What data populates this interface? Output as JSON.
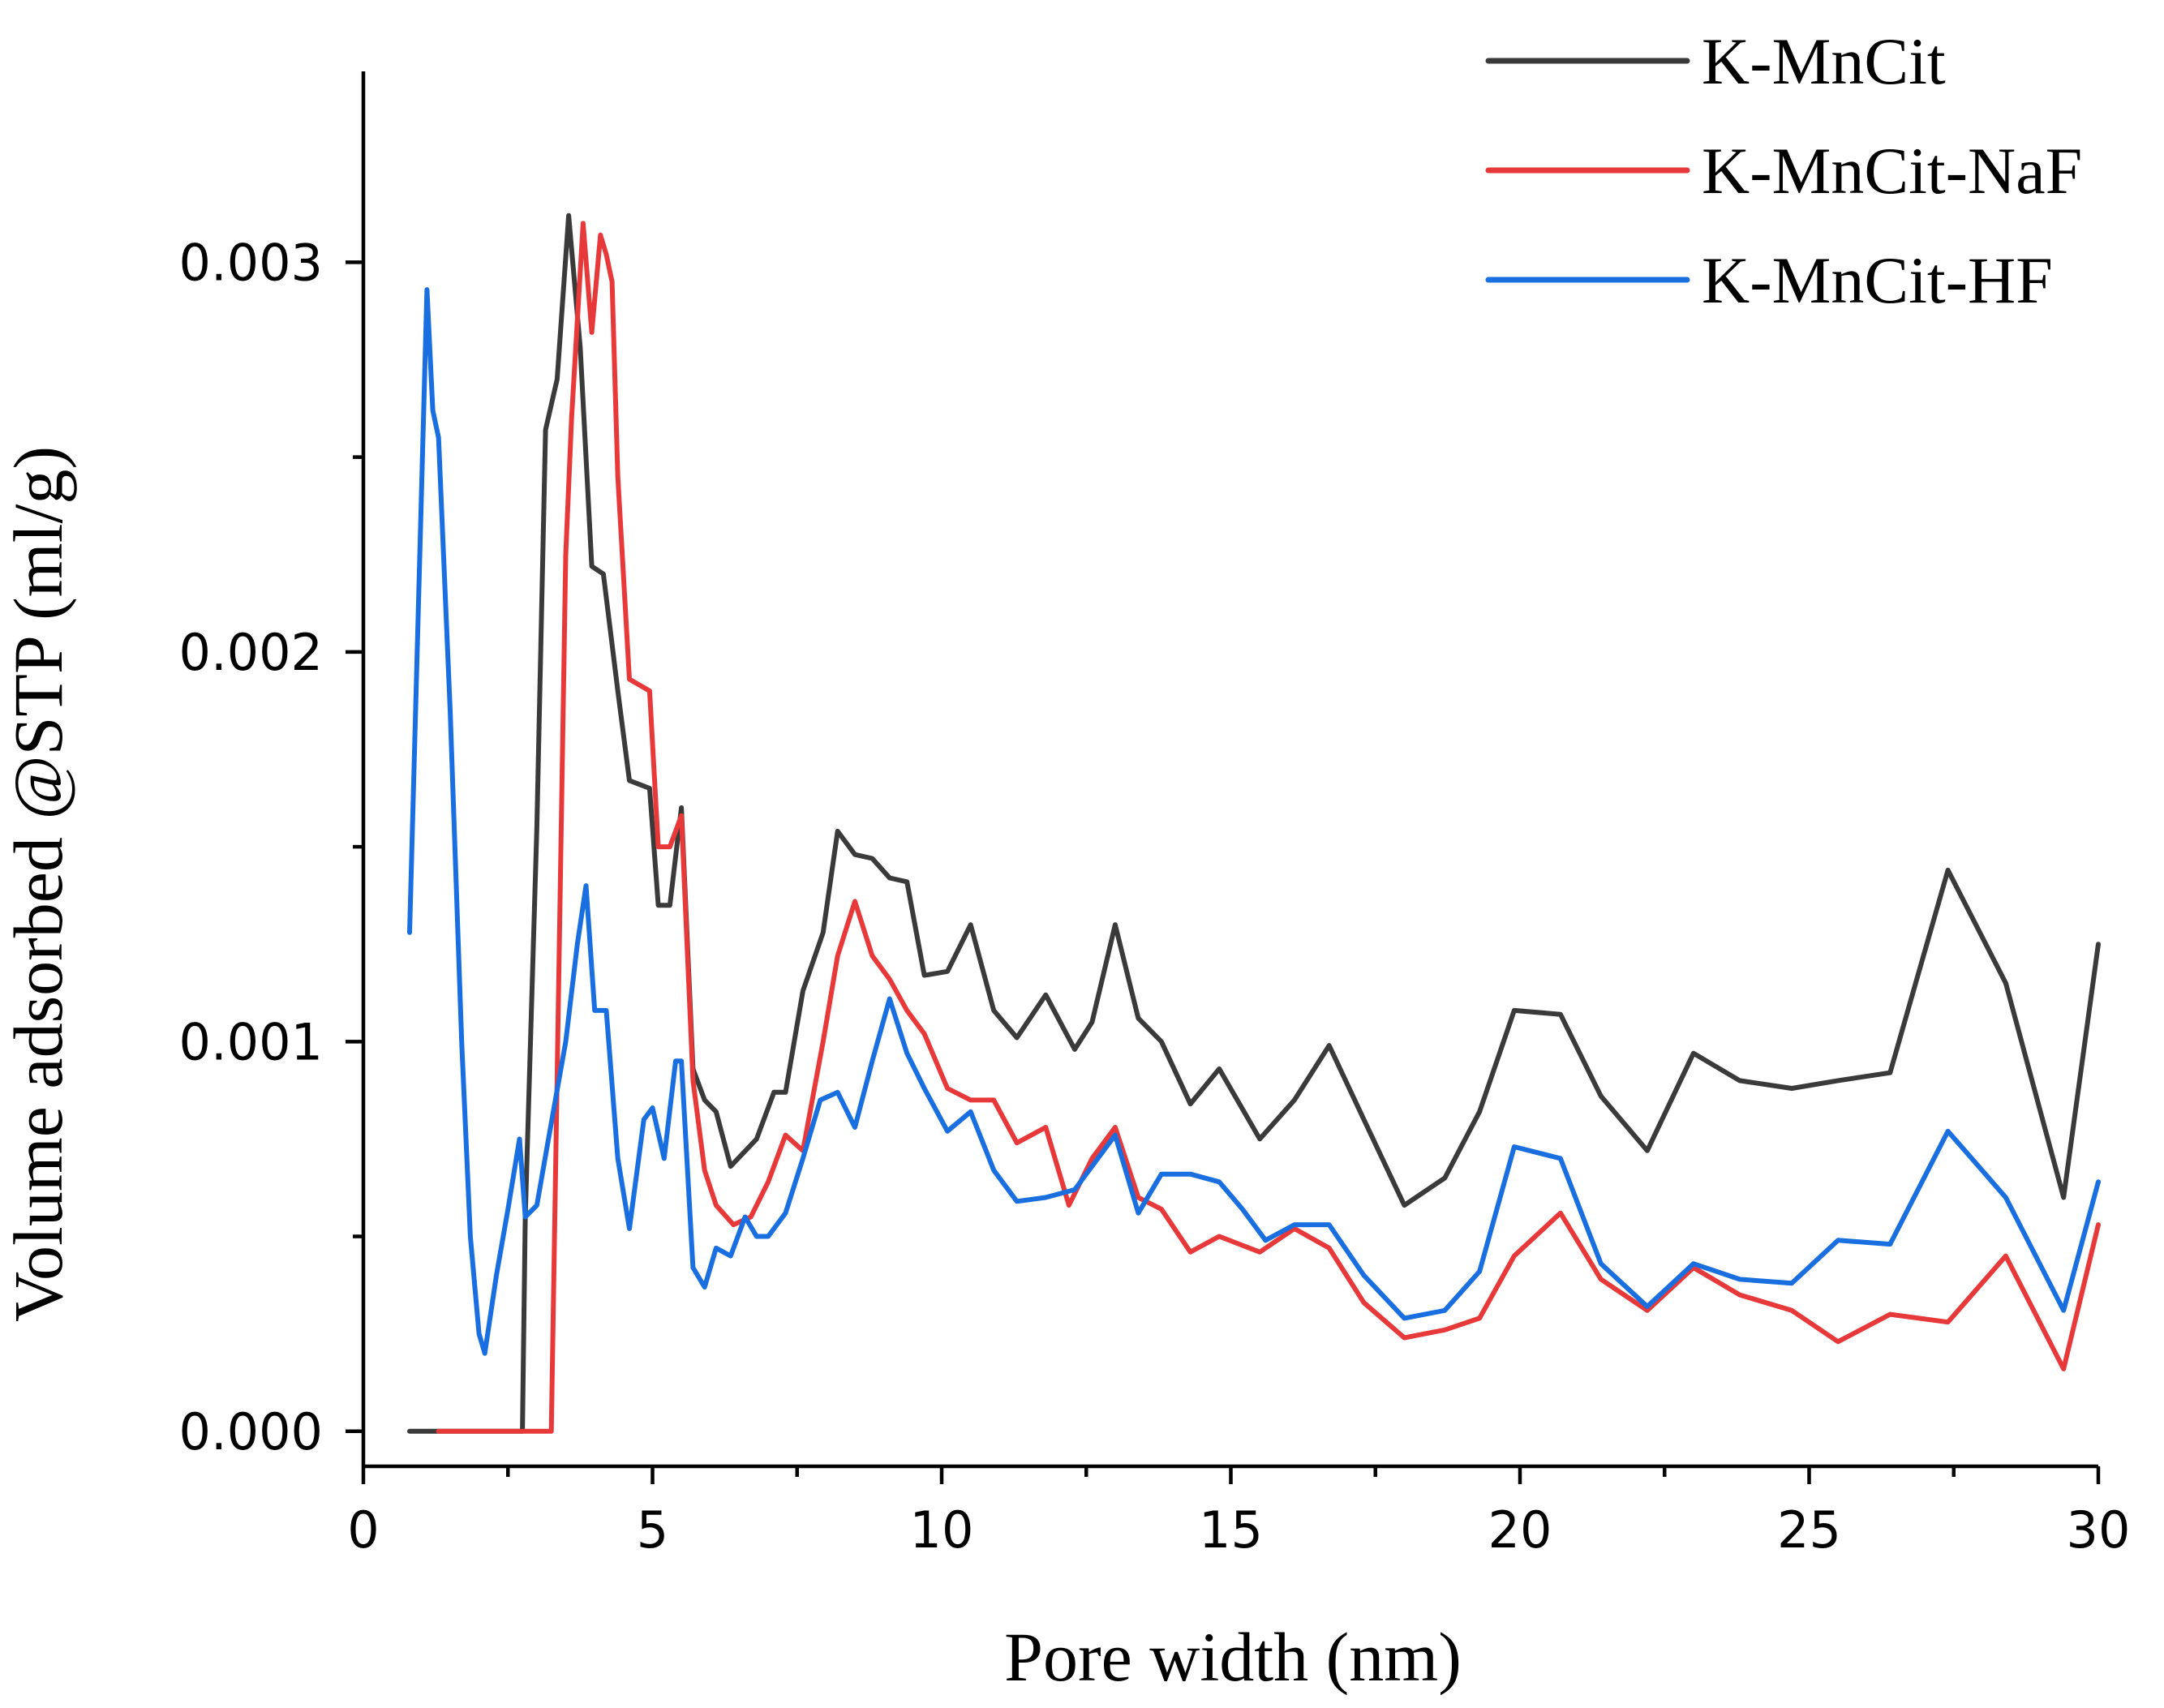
{
  "chart_data": {
    "type": "line",
    "xlabel": "Pore width (nm)",
    "ylabel": "Volume adsorbed @STP (ml/g)",
    "xlim": [
      0,
      30
    ],
    "ylim": [
      -9e-05,
      0.00349
    ],
    "x_ticks": [
      0,
      5,
      10,
      15,
      20,
      25,
      30
    ],
    "x_tick_labels": [
      "0",
      "5",
      "10",
      "15",
      "20",
      "25",
      "30"
    ],
    "y_ticks": [
      0,
      0.001,
      0.002,
      0.003
    ],
    "y_tick_labels": [
      "0.000",
      "0.001",
      "0.002",
      "0.003"
    ],
    "legend_position": "top-right",
    "grid": false,
    "series": [
      {
        "name": "K-MnCit",
        "color": "#3a3a3a",
        "x": [
          0.8,
          1.3,
          1.8,
          2.3,
          2.75,
          2.8,
          3.0,
          3.15,
          3.35,
          3.55,
          3.75,
          3.95,
          4.15,
          4.4,
          4.6,
          4.95,
          5.1,
          5.3,
          5.5,
          5.7,
          5.9,
          6.1,
          6.35,
          6.8,
          7.1,
          7.3,
          7.6,
          7.95,
          8.2,
          8.5,
          8.8,
          9.1,
          9.4,
          9.7,
          10.1,
          10.5,
          10.9,
          11.3,
          11.8,
          12.3,
          12.6,
          13.0,
          13.4,
          13.8,
          14.3,
          14.8,
          15.5,
          16.1,
          16.7,
          17.3,
          18.0,
          18.7,
          19.3,
          19.9,
          20.7,
          21.4,
          22.2,
          23.0,
          23.8,
          24.7,
          25.5,
          26.4,
          27.4,
          28.4,
          29.4,
          30.0
        ],
        "y": [
          0.0,
          0.0,
          0.0,
          0.0,
          0.0,
          0.00055,
          0.00155,
          0.00257,
          0.0027,
          0.00312,
          0.00278,
          0.00222,
          0.0022,
          0.0019,
          0.00167,
          0.00165,
          0.00135,
          0.00135,
          0.0016,
          0.00093,
          0.00085,
          0.00082,
          0.00068,
          0.00075,
          0.00087,
          0.00087,
          0.00113,
          0.00128,
          0.00154,
          0.00148,
          0.00147,
          0.00142,
          0.00141,
          0.00117,
          0.00118,
          0.0013,
          0.00108,
          0.00101,
          0.00112,
          0.00098,
          0.00105,
          0.0013,
          0.00106,
          0.001,
          0.00084,
          0.00093,
          0.00075,
          0.00085,
          0.00099,
          0.0008,
          0.00058,
          0.00065,
          0.00082,
          0.00108,
          0.00107,
          0.00086,
          0.00072,
          0.00097,
          0.0009,
          0.00088,
          0.0009,
          0.00092,
          0.00144,
          0.00115,
          0.0006,
          0.00125
        ]
      },
      {
        "name": "K-MnCit-NaF",
        "color": "#e8393a",
        "x": [
          1.3,
          1.8,
          2.3,
          2.8,
          3.25,
          3.5,
          3.6,
          3.8,
          3.95,
          4.1,
          4.2,
          4.3,
          4.4,
          4.6,
          4.95,
          5.1,
          5.3,
          5.5,
          5.7,
          5.9,
          6.1,
          6.4,
          6.7,
          7.0,
          7.3,
          7.6,
          7.95,
          8.2,
          8.5,
          8.8,
          9.1,
          9.4,
          9.7,
          10.1,
          10.5,
          10.9,
          11.3,
          11.8,
          12.2,
          12.6,
          13.0,
          13.4,
          13.8,
          14.3,
          14.8,
          15.5,
          16.1,
          16.7,
          17.3,
          18.0,
          18.7,
          19.3,
          19.9,
          20.7,
          21.4,
          22.2,
          23.0,
          23.8,
          24.7,
          25.5,
          26.4,
          27.4,
          28.4,
          29.4,
          30.0
        ],
        "y": [
          0.0,
          0.0,
          0.0,
          0.0,
          0.0,
          0.00225,
          0.0026,
          0.0031,
          0.00282,
          0.00307,
          0.00302,
          0.00295,
          0.00245,
          0.00193,
          0.0019,
          0.0015,
          0.0015,
          0.00158,
          0.0009,
          0.00067,
          0.00058,
          0.00053,
          0.00055,
          0.00064,
          0.00076,
          0.00072,
          0.001,
          0.00122,
          0.00136,
          0.00122,
          0.00116,
          0.00108,
          0.00102,
          0.00088,
          0.00085,
          0.00085,
          0.00074,
          0.00078,
          0.00058,
          0.0007,
          0.00078,
          0.0006,
          0.00057,
          0.00046,
          0.0005,
          0.00046,
          0.00052,
          0.00047,
          0.00033,
          0.00024,
          0.00026,
          0.00029,
          0.00045,
          0.00056,
          0.00039,
          0.00031,
          0.00042,
          0.00035,
          0.00031,
          0.00023,
          0.0003,
          0.00028,
          0.00045,
          0.00016,
          0.00053
        ]
      },
      {
        "name": "K-MnCit-HF",
        "color": "#1a6fe0",
        "x": [
          0.8,
          1.1,
          1.2,
          1.3,
          1.5,
          1.7,
          1.85,
          2.0,
          2.1,
          2.3,
          2.5,
          2.7,
          2.8,
          3.0,
          3.2,
          3.5,
          3.7,
          3.85,
          4.0,
          4.2,
          4.4,
          4.6,
          4.85,
          5.0,
          5.2,
          5.4,
          5.5,
          5.7,
          5.9,
          6.1,
          6.35,
          6.6,
          6.8,
          7.0,
          7.3,
          7.6,
          7.9,
          8.2,
          8.5,
          8.8,
          9.1,
          9.4,
          9.7,
          10.1,
          10.5,
          10.9,
          11.3,
          11.8,
          12.3,
          13.0,
          13.4,
          13.8,
          14.3,
          14.8,
          15.2,
          15.6,
          16.1,
          16.7,
          17.3,
          18.0,
          18.7,
          19.3,
          19.9,
          20.7,
          21.4,
          22.2,
          23.0,
          23.8,
          24.7,
          25.5,
          26.4,
          27.4,
          28.4,
          29.4,
          30.0
        ],
        "y": [
          0.00128,
          0.00293,
          0.00262,
          0.00255,
          0.00185,
          0.001,
          0.0005,
          0.00025,
          0.0002,
          0.0004,
          0.00057,
          0.00075,
          0.00055,
          0.00058,
          0.00075,
          0.001,
          0.00125,
          0.0014,
          0.00108,
          0.00108,
          0.0007,
          0.00052,
          0.0008,
          0.00083,
          0.0007,
          0.00095,
          0.00095,
          0.00042,
          0.00037,
          0.00047,
          0.00045,
          0.00055,
          0.0005,
          0.0005,
          0.00056,
          0.0007,
          0.00085,
          0.00087,
          0.00078,
          0.00095,
          0.00111,
          0.00097,
          0.00088,
          0.00077,
          0.00082,
          0.00067,
          0.00059,
          0.0006,
          0.00062,
          0.00076,
          0.00056,
          0.00066,
          0.00066,
          0.00064,
          0.00057,
          0.00049,
          0.00053,
          0.00053,
          0.0004,
          0.00029,
          0.00031,
          0.00041,
          0.00073,
          0.0007,
          0.00043,
          0.00032,
          0.00043,
          0.00039,
          0.00038,
          0.00049,
          0.00048,
          0.00077,
          0.0006,
          0.00031,
          0.00064
        ]
      }
    ]
  }
}
